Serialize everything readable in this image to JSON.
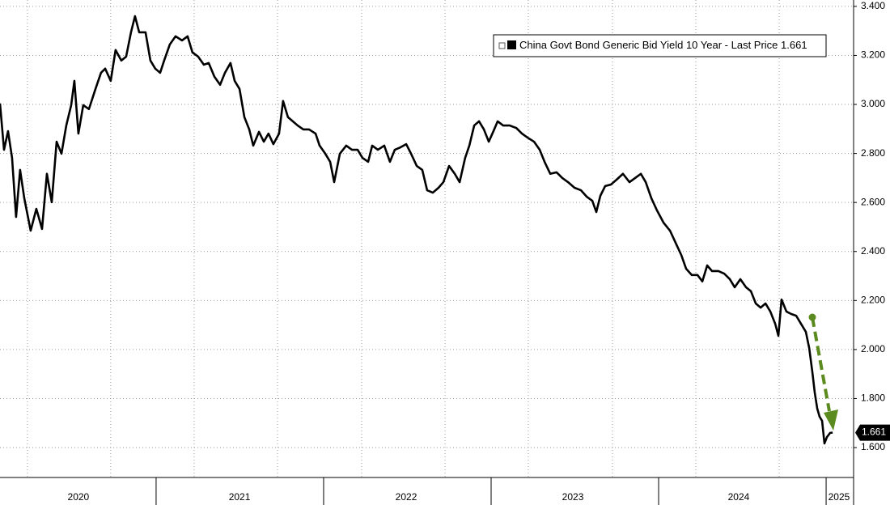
{
  "chart_data": {
    "type": "line",
    "grid": true,
    "legend_position": "upper right",
    "xlim": [
      2020.068,
      2025.164
    ],
    "ylim": [
      1.478,
      3.426
    ],
    "yticks": [
      {
        "value": 1.6,
        "label": "1.600"
      },
      {
        "value": 1.8,
        "label": "1.800"
      },
      {
        "value": 2,
        "label": "2.000"
      },
      {
        "value": 2.2,
        "label": "2.200"
      },
      {
        "value": 2.4,
        "label": "2.400"
      },
      {
        "value": 2.6,
        "label": "2.600"
      },
      {
        "value": 2.8,
        "label": "2.800"
      },
      {
        "value": 3,
        "label": "3.000"
      },
      {
        "value": 3.2,
        "label": "3.200"
      },
      {
        "value": 3.4,
        "label": "3.400"
      }
    ],
    "xticks": [
      {
        "value": 2020.536,
        "label": "2020"
      },
      {
        "value": 2021.498,
        "label": "2021"
      },
      {
        "value": 2022.493,
        "label": "2022"
      },
      {
        "value": 2023.488,
        "label": "2023"
      },
      {
        "value": 2024.478,
        "label": "2024"
      },
      {
        "value": 2025.077,
        "label": "2025"
      }
    ],
    "xdividers": [
      2021,
      2022,
      2023,
      2024,
      2025
    ],
    "xgrid": [
      2020.232,
      2020.729,
      2021.227,
      2021.725,
      2022.227,
      2022.725,
      2023.222,
      2023.725,
      2024.222,
      2024.72
    ],
    "x": [
      2020.068,
      2020.092,
      2020.116,
      2020.14,
      2020.164,
      2020.188,
      2020.213,
      2020.251,
      2020.285,
      2020.319,
      2020.348,
      2020.377,
      2020.406,
      2020.435,
      2020.464,
      2020.493,
      2020.512,
      2020.536,
      2020.565,
      2020.599,
      2020.638,
      2020.671,
      2020.696,
      2020.729,
      2020.758,
      2020.792,
      2020.821,
      2020.85,
      2020.874,
      2020.899,
      2020.937,
      2020.966,
      2020.995,
      2021.024,
      2021.048,
      2021.082,
      2021.116,
      2021.155,
      2021.188,
      2021.217,
      2021.251,
      2021.285,
      2021.314,
      2021.348,
      2021.382,
      2021.411,
      2021.444,
      2021.469,
      2021.498,
      2021.527,
      2021.556,
      2021.58,
      2021.614,
      2021.643,
      2021.671,
      2021.7,
      2021.734,
      2021.758,
      2021.787,
      2021.816,
      2021.845,
      2021.879,
      2021.913,
      2021.952,
      2021.976,
      2022.01,
      2022.039,
      2022.063,
      2022.097,
      2022.135,
      2022.169,
      2022.203,
      2022.232,
      2022.266,
      2022.29,
      2022.324,
      2022.362,
      2022.396,
      2022.425,
      2022.459,
      2022.493,
      2022.522,
      2022.556,
      2022.589,
      2022.618,
      2022.652,
      2022.686,
      2022.715,
      2022.749,
      2022.783,
      2022.812,
      2022.845,
      2022.87,
      2022.899,
      2022.928,
      2022.957,
      2022.986,
      2023.014,
      2023.039,
      2023.072,
      2023.111,
      2023.15,
      2023.184,
      2023.217,
      2023.256,
      2023.29,
      2023.319,
      2023.353,
      2023.391,
      2023.425,
      2023.459,
      2023.498,
      2023.536,
      2023.57,
      2023.604,
      2023.628,
      2023.652,
      2023.681,
      2023.715,
      2023.749,
      2023.787,
      2023.826,
      2023.86,
      2023.894,
      2023.923,
      2023.957,
      2023.99,
      2024.029,
      2024.068,
      2024.101,
      2024.135,
      2024.164,
      2024.198,
      2024.232,
      2024.261,
      2024.29,
      2024.319,
      2024.357,
      2024.391,
      2024.425,
      2024.454,
      2024.488,
      2024.522,
      2024.551,
      2024.58,
      2024.609,
      2024.638,
      2024.667,
      2024.696,
      2024.715,
      2024.734,
      2024.763,
      2024.792,
      2024.821,
      2024.85,
      2024.879,
      2024.899,
      2024.918,
      2024.932,
      2024.947,
      2024.961,
      2024.976,
      2024.99,
      2025.005,
      2025.024,
      2025.039
    ],
    "series": [
      {
        "name": "China Govt Bond Generic Bid Yield 10 Year - Last Price",
        "color": "#000000",
        "last_value": 1.661,
        "values": [
          3.004,
          2.815,
          2.891,
          2.782,
          2.541,
          2.733,
          2.617,
          2.485,
          2.574,
          2.492,
          2.717,
          2.601,
          2.848,
          2.799,
          2.915,
          2.997,
          3.096,
          2.881,
          2.997,
          2.981,
          3.063,
          3.129,
          3.146,
          3.096,
          3.222,
          3.179,
          3.195,
          3.294,
          3.36,
          3.294,
          3.294,
          3.179,
          3.146,
          3.129,
          3.179,
          3.245,
          3.278,
          3.261,
          3.278,
          3.212,
          3.195,
          3.162,
          3.169,
          3.113,
          3.08,
          3.129,
          3.169,
          3.096,
          3.063,
          2.948,
          2.898,
          2.832,
          2.888,
          2.848,
          2.881,
          2.838,
          2.881,
          3.014,
          2.948,
          2.931,
          2.914,
          2.898,
          2.898,
          2.881,
          2.832,
          2.799,
          2.766,
          2.683,
          2.799,
          2.832,
          2.815,
          2.815,
          2.782,
          2.766,
          2.832,
          2.815,
          2.832,
          2.766,
          2.815,
          2.825,
          2.838,
          2.799,
          2.749,
          2.733,
          2.65,
          2.64,
          2.66,
          2.683,
          2.749,
          2.717,
          2.683,
          2.782,
          2.832,
          2.914,
          2.931,
          2.898,
          2.848,
          2.891,
          2.931,
          2.914,
          2.914,
          2.904,
          2.881,
          2.865,
          2.848,
          2.815,
          2.766,
          2.717,
          2.723,
          2.7,
          2.683,
          2.66,
          2.65,
          2.624,
          2.607,
          2.561,
          2.627,
          2.667,
          2.673,
          2.693,
          2.717,
          2.683,
          2.7,
          2.717,
          2.683,
          2.617,
          2.568,
          2.518,
          2.485,
          2.436,
          2.386,
          2.33,
          2.304,
          2.304,
          2.278,
          2.343,
          2.32,
          2.32,
          2.31,
          2.287,
          2.254,
          2.287,
          2.254,
          2.238,
          2.188,
          2.171,
          2.188,
          2.155,
          2.105,
          2.056,
          2.204,
          2.155,
          2.145,
          2.138,
          2.105,
          2.072,
          2.006,
          1.907,
          1.825,
          1.759,
          1.726,
          1.709,
          1.617,
          1.643,
          1.66,
          1.661
        ]
      }
    ]
  }
}
